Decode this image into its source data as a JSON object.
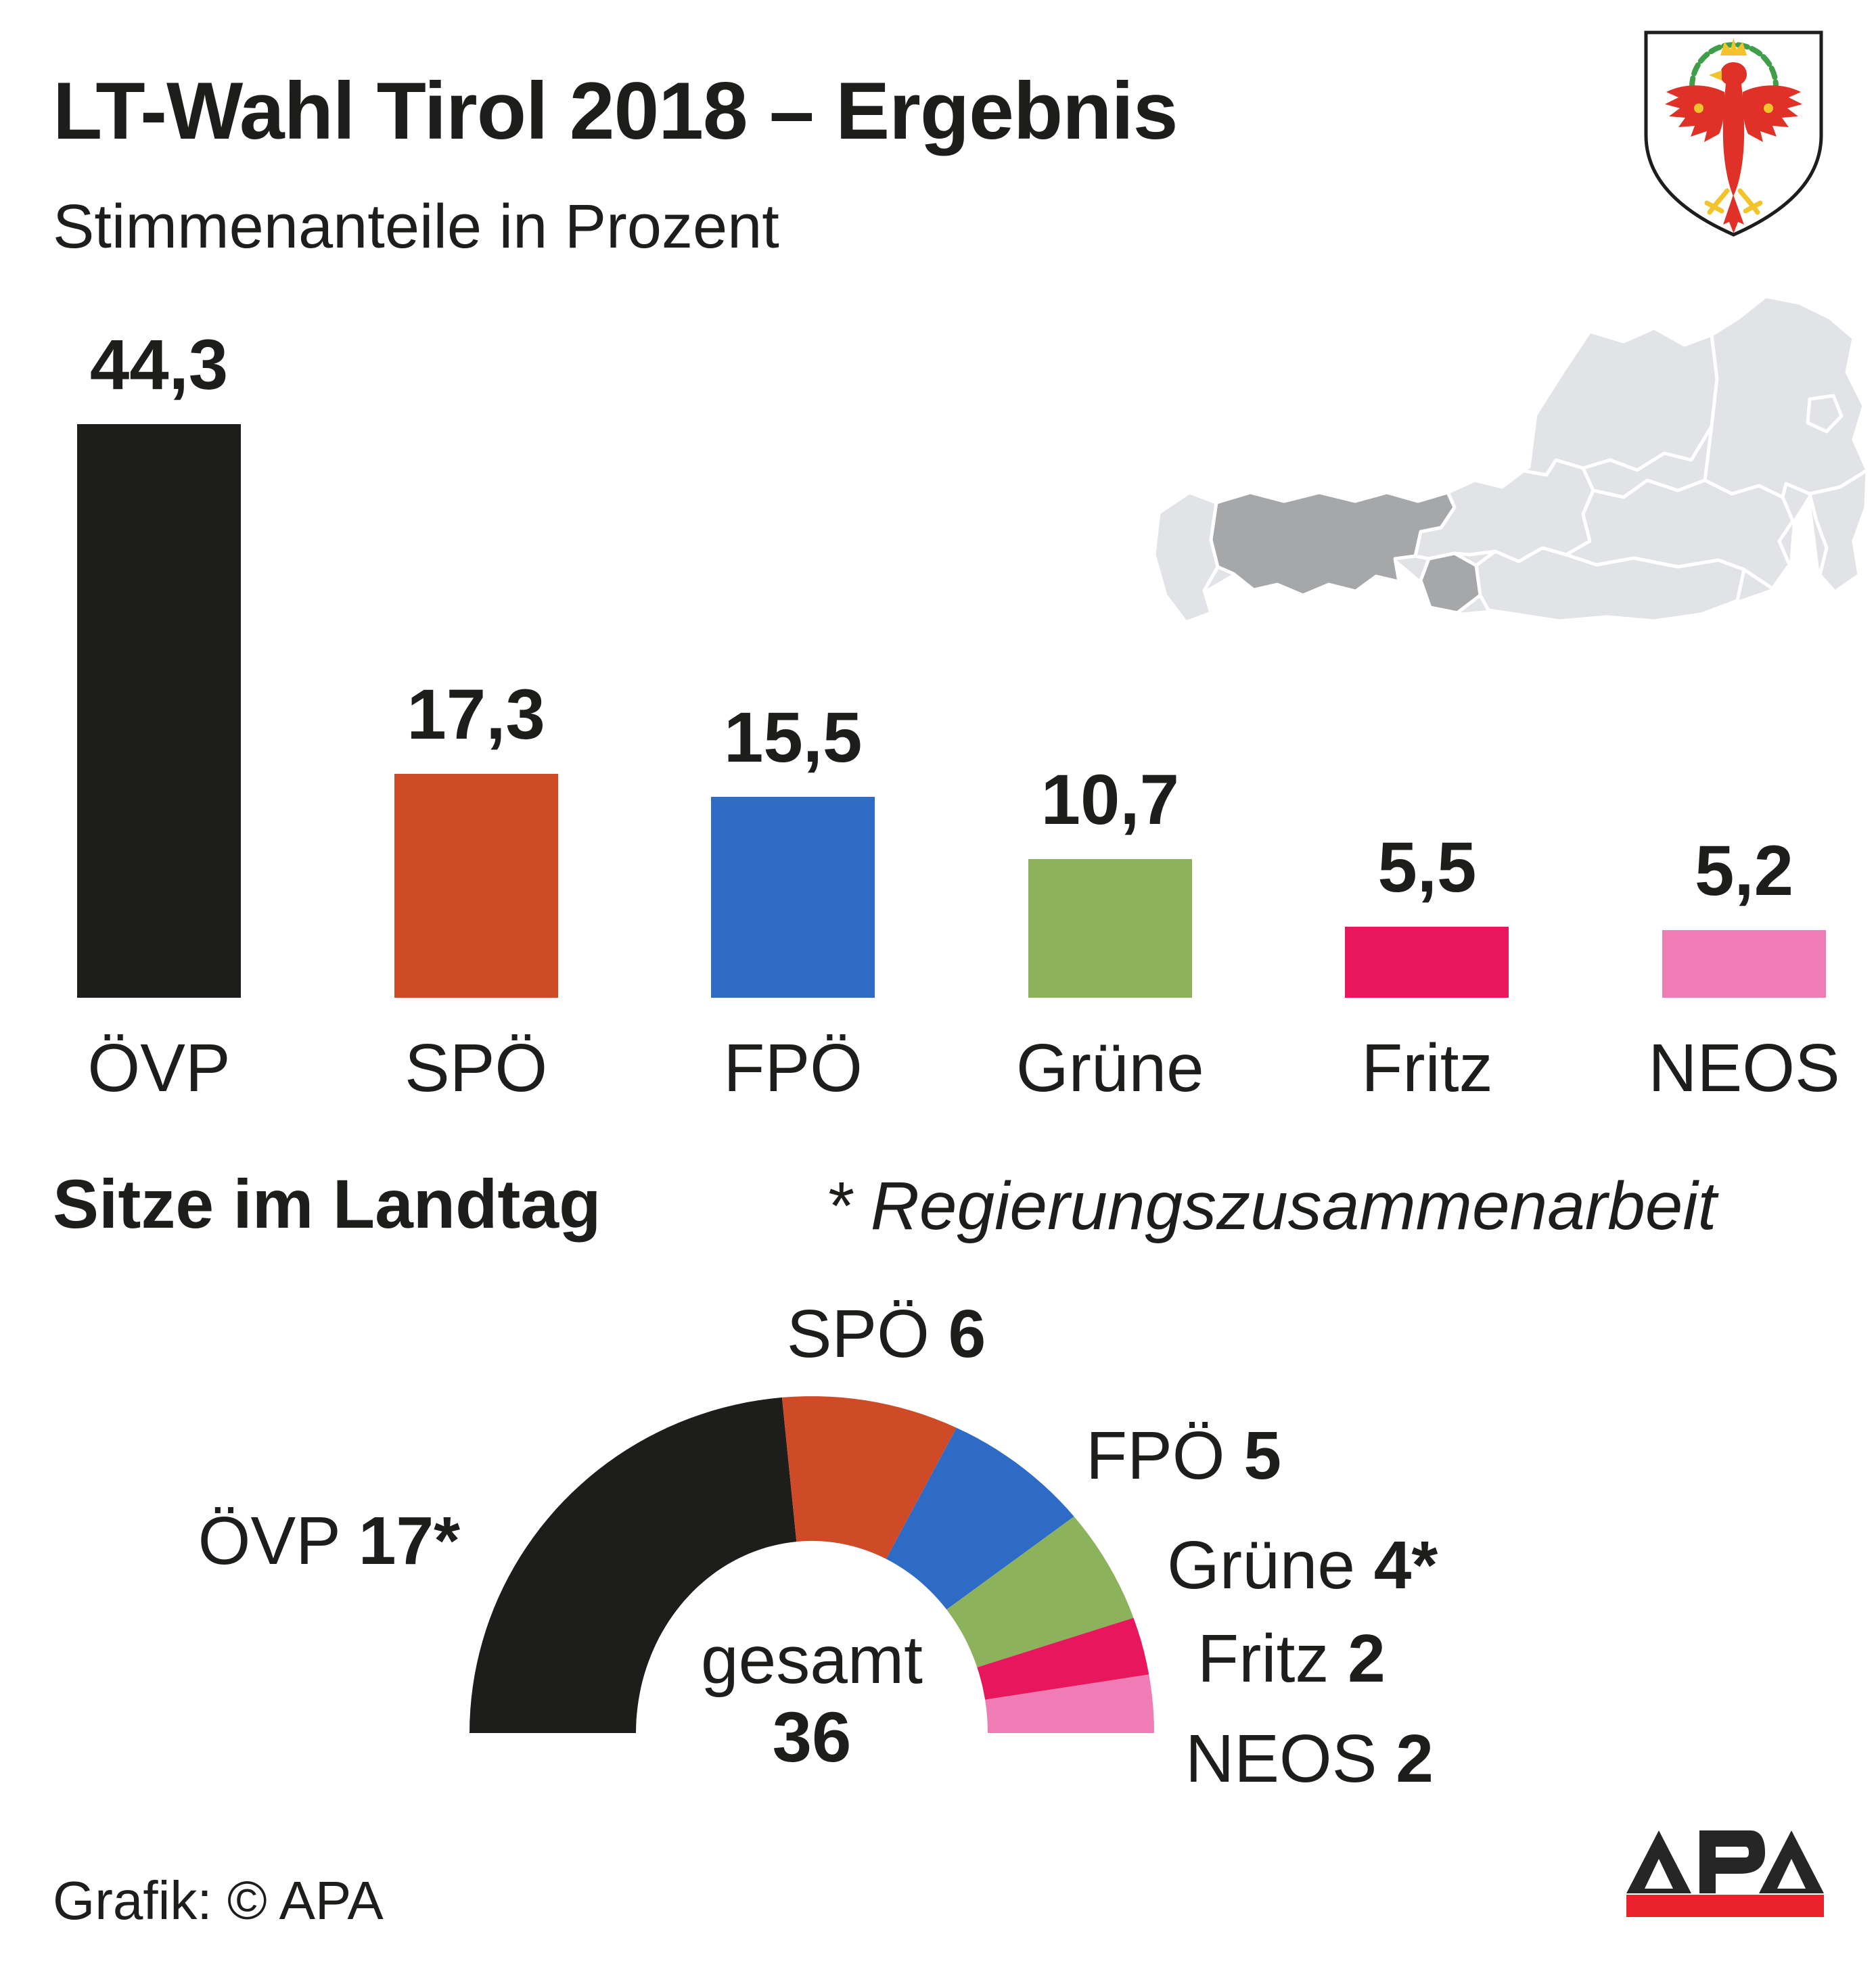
{
  "header": {
    "title": "LT-Wahl Tirol 2018 – Ergebnis",
    "subtitle": "Stimmenanteile in Prozent"
  },
  "colors": {
    "text": "#1d1d1b",
    "ovp": "#1d1d1b",
    "spo": "#cf4b28",
    "fpo": "#2e6bc6",
    "gruene": "#8cb25c",
    "fritz": "#e8175d",
    "neos": "#f07cb6",
    "map_light": "#e2e3e7",
    "map_dark": "#a6a7a9",
    "map_border": "#ffffff",
    "apa_red": "#e9222b",
    "shield_red": "#e03128",
    "shield_yellow": "#f2c32b",
    "shield_green": "#3f9e49"
  },
  "chart_data": [
    {
      "type": "bar",
      "title": "LT-Wahl Tirol 2018 – Ergebnis",
      "subtitle": "Stimmenanteile in Prozent",
      "categories": [
        "ÖVP",
        "SPÖ",
        "FPÖ",
        "Grüne",
        "Fritz",
        "NEOS"
      ],
      "values": [
        44.3,
        17.3,
        15.5,
        10.7,
        5.5,
        5.2
      ],
      "value_labels": [
        "44,3",
        "17,3",
        "15,5",
        "10,7",
        "5,5",
        "5,2"
      ],
      "colors": [
        "#1d1d1b",
        "#cf4b28",
        "#2e6bc6",
        "#8cb25c",
        "#e8175d",
        "#f07cb6"
      ],
      "xlabel": "",
      "ylabel": "Stimmenanteile in Prozent",
      "ylim": [
        0,
        45
      ],
      "grid": false,
      "value_label_position": "above-bar"
    },
    {
      "type": "pie",
      "variant": "half-donut",
      "title": "Sitze im Landtag",
      "note": "* Regierungszusammenarbeit",
      "categories": [
        "ÖVP",
        "SPÖ",
        "FPÖ",
        "Grüne",
        "Fritz",
        "NEOS"
      ],
      "values": [
        17,
        6,
        5,
        4,
        2,
        2
      ],
      "seat_labels": [
        "17*",
        "6",
        "5",
        "4*",
        "2",
        "2"
      ],
      "colors": [
        "#1d1d1b",
        "#cf4b28",
        "#2e6bc6",
        "#8cb25c",
        "#e8175d",
        "#f07cb6"
      ],
      "total": 36,
      "center_label": "gesamt",
      "center_value": "36",
      "start_angle": 180,
      "end_angle": 0,
      "legend_position": "around-arc"
    }
  ],
  "seats_section": {
    "heading": "Sitze im Landtag",
    "note": "* Regierungszusammenarbeit",
    "center_label": "gesamt",
    "center_value": "36",
    "labels": [
      {
        "id": "ovp",
        "name": "ÖVP",
        "seats": "17*"
      },
      {
        "id": "spo",
        "name": "SPÖ",
        "seats": "6"
      },
      {
        "id": "fpo",
        "name": "FPÖ",
        "seats": "5"
      },
      {
        "id": "gruene",
        "name": "Grüne",
        "seats": "4*"
      },
      {
        "id": "fritz",
        "name": "Fritz",
        "seats": "2"
      },
      {
        "id": "neos",
        "name": "NEOS",
        "seats": "2"
      }
    ]
  },
  "map": {
    "country": "Österreich",
    "highlighted_state": "Tirol"
  },
  "footer": {
    "credit": "Grafik: © APA",
    "logo_text": "APA"
  }
}
